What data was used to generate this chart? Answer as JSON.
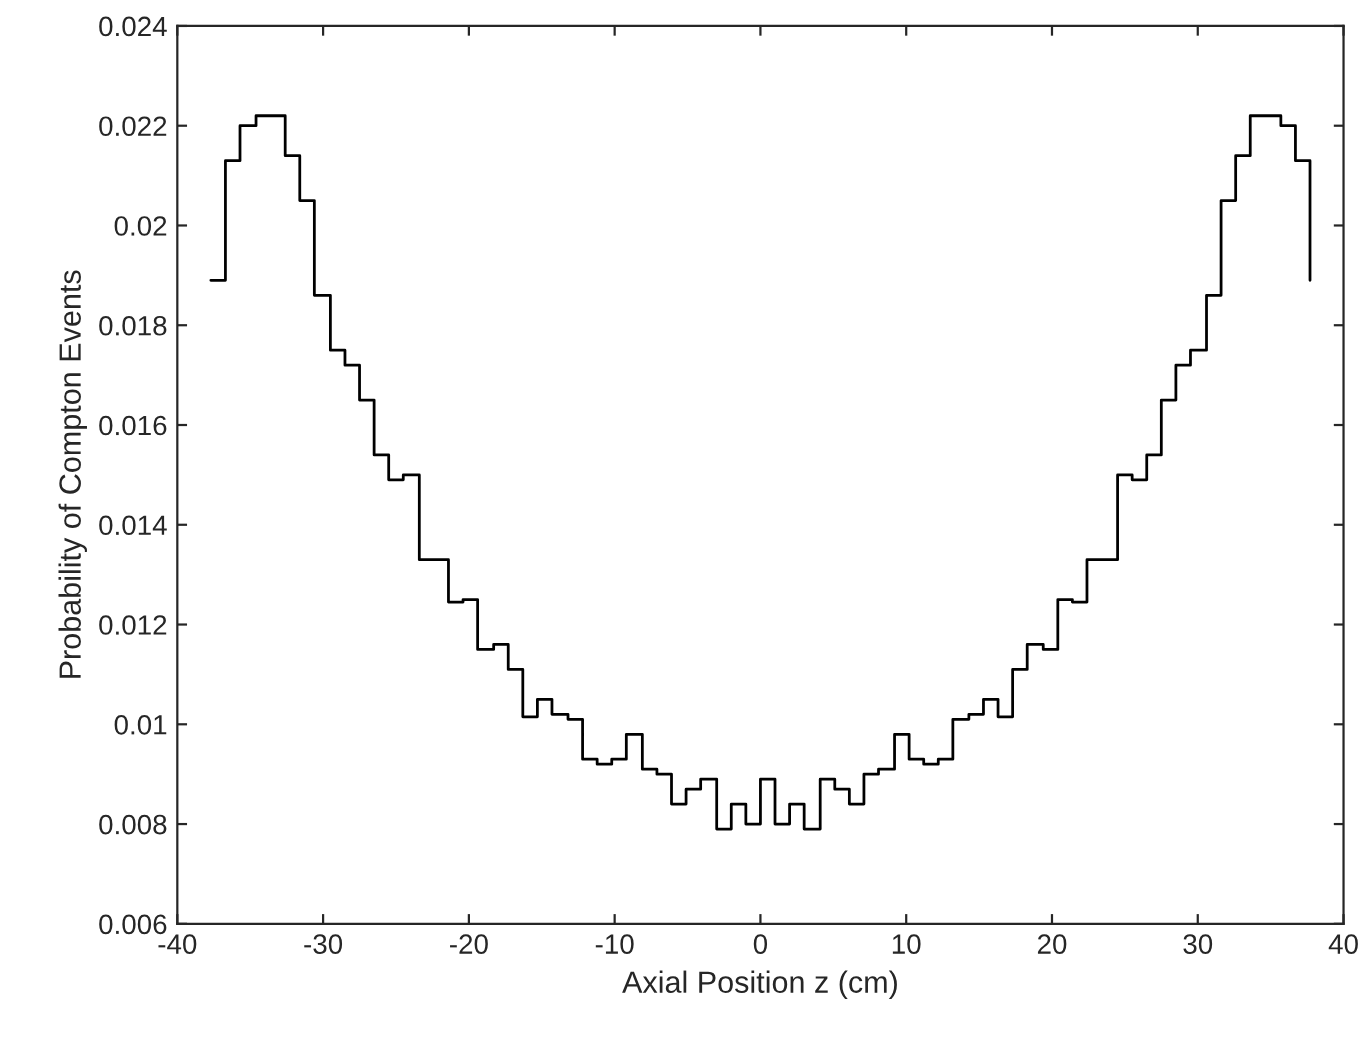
{
  "chart_data": {
    "type": "step",
    "xlabel": "Axial Position z (cm)",
    "ylabel": "Probability of Compton Events",
    "x": [
      -37.7,
      -36.7,
      -35.7,
      -34.6,
      -33.6,
      -32.6,
      -31.6,
      -30.6,
      -29.5,
      -28.5,
      -27.5,
      -26.5,
      -25.5,
      -24.5,
      -23.4,
      -22.4,
      -21.4,
      -20.4,
      -19.4,
      -18.3,
      -17.3,
      -16.3,
      -15.3,
      -14.3,
      -13.2,
      -12.2,
      -11.2,
      -10.2,
      -9.2,
      -8.1,
      -7.1,
      -6.1,
      -5.1,
      -4.1,
      -3.0,
      -2.0,
      -1.0,
      0.0,
      1.0,
      2.0,
      3.0,
      4.1,
      5.1,
      6.1,
      7.1,
      8.1,
      9.2,
      10.2,
      11.2,
      12.2,
      13.2,
      14.3,
      15.3,
      16.3,
      17.3,
      18.3,
      19.4,
      20.4,
      21.4,
      22.4,
      23.4,
      24.5,
      25.5,
      26.5,
      27.5,
      28.5,
      29.5,
      30.6,
      31.6,
      32.6,
      33.6,
      34.6,
      35.7,
      36.7,
      37.7
    ],
    "series": [
      {
        "color": "#000000",
        "values": [
          0.0189,
          0.0213,
          0.022,
          0.0222,
          0.0222,
          0.0214,
          0.0205,
          0.0186,
          0.0175,
          0.0172,
          0.0165,
          0.0154,
          0.0149,
          0.015,
          0.0133,
          0.0133,
          0.01245,
          0.0125,
          0.0115,
          0.0116,
          0.0111,
          0.01015,
          0.0105,
          0.0102,
          0.0101,
          0.0093,
          0.0092,
          0.0093,
          0.0098,
          0.0091,
          0.009,
          0.0084,
          0.0087,
          0.0089,
          0.0079,
          0.0084,
          0.008,
          0.0089,
          0.008,
          0.0084,
          0.0079,
          0.0089,
          0.0087,
          0.0084,
          0.009,
          0.0091,
          0.0098,
          0.0093,
          0.0092,
          0.0093,
          0.0101,
          0.0102,
          0.0105,
          0.01015,
          0.0111,
          0.0116,
          0.0115,
          0.0125,
          0.01245,
          0.0133,
          0.0133,
          0.015,
          0.0149,
          0.0154,
          0.0165,
          0.0172,
          0.0175,
          0.0186,
          0.0205,
          0.0214,
          0.0222,
          0.0222,
          0.022,
          0.0213,
          0.0189
        ]
      }
    ],
    "xlim": [
      -40,
      40
    ],
    "xticks": [
      -40,
      -30,
      -20,
      -10,
      0,
      10,
      20,
      30,
      40
    ],
    "ylim": [
      0.006,
      0.024
    ],
    "yticks": [
      0.006,
      0.008,
      0.01,
      0.012,
      0.014,
      0.016,
      0.018,
      0.02,
      0.022,
      0.024
    ],
    "grid": false
  }
}
